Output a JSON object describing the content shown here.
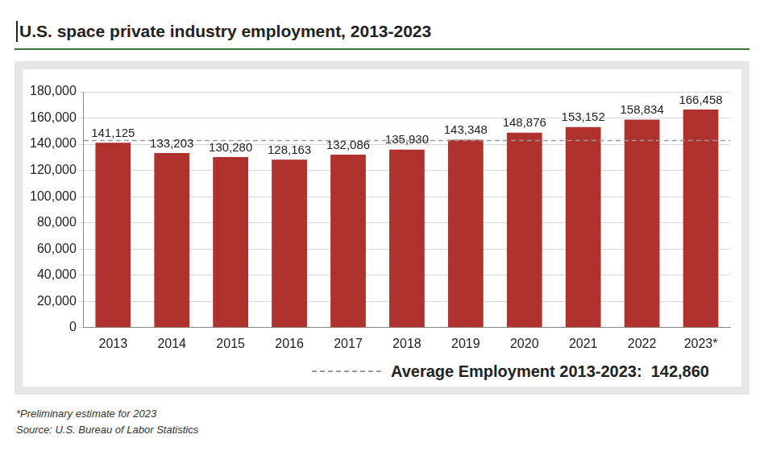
{
  "chart_data": {
    "type": "bar",
    "title": "U.S. space private industry employment, 2013-2023",
    "categories": [
      "2013",
      "2014",
      "2015",
      "2016",
      "2017",
      "2018",
      "2019",
      "2020",
      "2021",
      "2022",
      "2023*"
    ],
    "values": [
      141125,
      133203,
      130280,
      128163,
      132086,
      135930,
      143348,
      148876,
      153152,
      158834,
      166458
    ],
    "value_labels": [
      "141,125",
      "133,203",
      "130,280",
      "128,163",
      "132,086",
      "135,930",
      "143,348",
      "148,876",
      "153,152",
      "158,834",
      "166,458"
    ],
    "data_labels": true,
    "color": "#b0322e",
    "ylim": [
      0,
      180000
    ],
    "yticks": [
      0,
      {
        "value": 20000,
        "label": "20,000"
      },
      {
        "value": 40000,
        "label": "40,000"
      },
      {
        "value": 60000,
        "label": "60,000"
      },
      {
        "value": 80000,
        "label": "80,000"
      },
      {
        "value": 100000,
        "label": "100,000"
      },
      {
        "value": 120000,
        "label": "120,000"
      },
      {
        "value": 140000,
        "label": "140,000"
      },
      {
        "value": 160000,
        "label": "160,000"
      },
      {
        "value": 180000,
        "label": "180,000"
      }
    ],
    "grid": true,
    "average_line": {
      "value": 142860,
      "label": "Average Employment 2013-2023:  142,860"
    },
    "notes": [
      "*Preliminary estimate for 2023",
      "Source: U.S. Bureau of Labor Statistics"
    ]
  }
}
